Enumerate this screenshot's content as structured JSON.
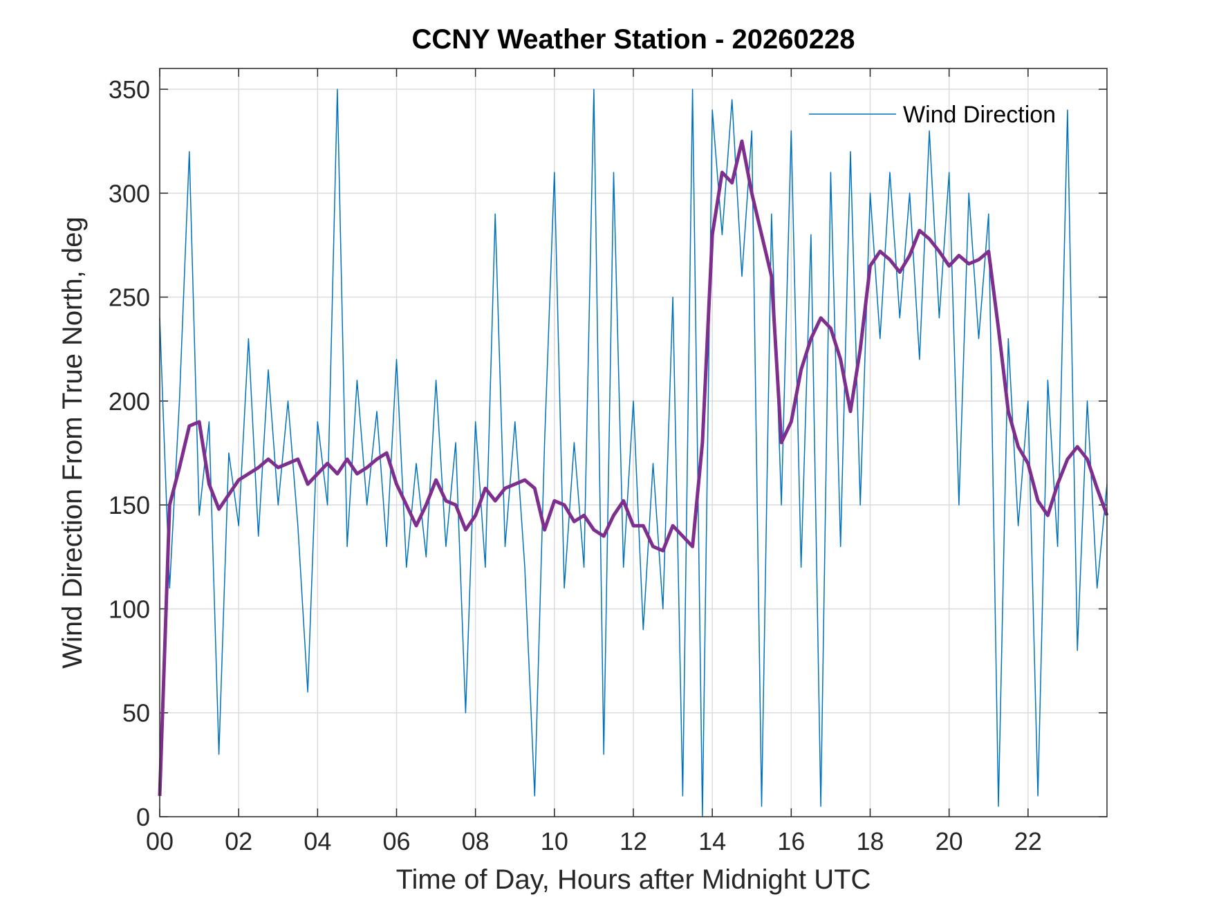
{
  "chart_data": {
    "type": "line",
    "title": "CCNY Weather Station - 20260228",
    "xlabel": "Time of Day, Hours after Midnight UTC",
    "ylabel": "Wind Direction From True North, deg",
    "xlim": [
      0,
      24
    ],
    "xticks": [
      {
        "value": 0,
        "label": "00"
      },
      {
        "value": 2,
        "label": "02"
      },
      {
        "value": 4,
        "label": "04"
      },
      {
        "value": 6,
        "label": "06"
      },
      {
        "value": 8,
        "label": "08"
      },
      10,
      12,
      14,
      16,
      18,
      20,
      22
    ],
    "ylim": [
      0,
      360
    ],
    "yticks": [
      0,
      50,
      100,
      150,
      200,
      250,
      300,
      350
    ],
    "grid": true,
    "legend": "northeast",
    "x": [
      0,
      0.25,
      0.5,
      0.75,
      1,
      1.25,
      1.5,
      1.75,
      2,
      2.25,
      2.5,
      2.75,
      3,
      3.25,
      3.5,
      3.75,
      4,
      4.25,
      4.5,
      4.75,
      5,
      5.25,
      5.5,
      5.75,
      6,
      6.25,
      6.5,
      6.75,
      7,
      7.25,
      7.5,
      7.75,
      8,
      8.25,
      8.5,
      8.75,
      9,
      9.25,
      9.5,
      9.75,
      10,
      10.25,
      10.5,
      10.75,
      11,
      11.25,
      11.5,
      11.75,
      12,
      12.25,
      12.5,
      12.75,
      13,
      13.25,
      13.5,
      13.75,
      14,
      14.25,
      14.5,
      14.75,
      15,
      15.25,
      15.5,
      15.75,
      16,
      16.25,
      16.5,
      16.75,
      17,
      17.25,
      17.5,
      17.75,
      18,
      18.25,
      18.5,
      18.75,
      19,
      19.25,
      19.5,
      19.75,
      20,
      20.25,
      20.5,
      20.75,
      21,
      21.25,
      21.5,
      21.75,
      22,
      22.25,
      22.5,
      22.75,
      23,
      23.25,
      23.5,
      23.75,
      24
    ],
    "series": [
      {
        "name": "Wind Direction",
        "color": "#0072bd",
        "width": 1.5,
        "values": [
          240,
          110,
          200,
          320,
          145,
          190,
          30,
          175,
          140,
          230,
          135,
          215,
          150,
          200,
          140,
          60,
          190,
          150,
          350,
          130,
          210,
          150,
          195,
          130,
          220,
          120,
          170,
          125,
          210,
          130,
          180,
          50,
          190,
          120,
          290,
          130,
          190,
          120,
          10,
          180,
          310,
          110,
          180,
          120,
          350,
          30,
          310,
          120,
          200,
          90,
          170,
          100,
          250,
          10,
          350,
          0,
          340,
          280,
          345,
          260,
          330,
          5,
          290,
          150,
          330,
          120,
          280,
          5,
          310,
          130,
          320,
          150,
          300,
          230,
          310,
          240,
          300,
          220,
          330,
          240,
          310,
          150,
          300,
          230,
          290,
          5,
          230,
          140,
          200,
          10,
          210,
          130,
          340,
          80,
          200,
          110,
          160
        ]
      },
      {
        "color": "#7e2f8e",
        "width": 5,
        "values": [
          10,
          150,
          168,
          188,
          190,
          160,
          148,
          155,
          162,
          165,
          168,
          172,
          168,
          170,
          172,
          160,
          165,
          170,
          165,
          172,
          165,
          168,
          172,
          175,
          160,
          150,
          140,
          150,
          162,
          152,
          150,
          138,
          145,
          158,
          152,
          158,
          160,
          162,
          158,
          138,
          152,
          150,
          142,
          145,
          138,
          135,
          145,
          152,
          140,
          140,
          130,
          128,
          140,
          135,
          130,
          180,
          280,
          310,
          305,
          325,
          300,
          280,
          260,
          180,
          190,
          215,
          230,
          240,
          235,
          220,
          195,
          225,
          265,
          272,
          268,
          262,
          270,
          282,
          278,
          272,
          265,
          270,
          266,
          268,
          272,
          235,
          195,
          178,
          170,
          152,
          145,
          160,
          172,
          178,
          172,
          158,
          145
        ]
      }
    ]
  }
}
